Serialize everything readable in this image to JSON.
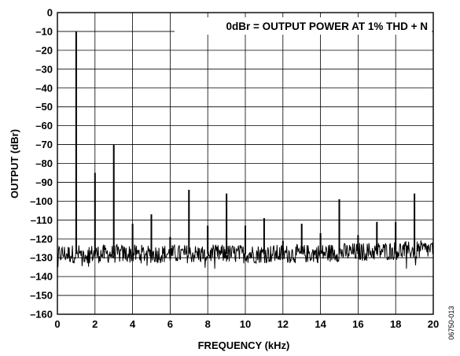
{
  "chart_data": {
    "type": "line",
    "title": "",
    "xlabel": "FREQUENCY (kHz)",
    "ylabel": "OUTPUT (dBr)",
    "xlim": [
      0,
      20
    ],
    "ylim": [
      -160,
      0
    ],
    "x_ticks": [
      0,
      2,
      4,
      6,
      8,
      10,
      12,
      14,
      16,
      18,
      20
    ],
    "y_ticks": [
      0,
      -10,
      -20,
      -30,
      -40,
      -50,
      -60,
      -70,
      -80,
      -90,
      -100,
      -110,
      -120,
      -130,
      -140,
      -150,
      -160
    ],
    "x_tick_labels": [
      "0",
      "2",
      "4",
      "6",
      "8",
      "10",
      "12",
      "14",
      "16",
      "18",
      "20"
    ],
    "y_tick_labels": [
      "0",
      "–10",
      "–20",
      "–30",
      "–40",
      "–50",
      "–60",
      "–70",
      "–80",
      "–90",
      "–100",
      "–110",
      "–120",
      "–130",
      "–140",
      "–150",
      "–160"
    ],
    "grid": true,
    "annotation": "0dBr = OUTPUT POWER AT 1% THD + N",
    "noise_floor": {
      "level": -128,
      "range": [
        -133,
        -123
      ]
    },
    "peaks": [
      {
        "x": 1,
        "y": -10
      },
      {
        "x": 2,
        "y": -85
      },
      {
        "x": 3,
        "y": -70
      },
      {
        "x": 4,
        "y": -112
      },
      {
        "x": 5,
        "y": -107
      },
      {
        "x": 6,
        "y": -119
      },
      {
        "x": 7,
        "y": -94
      },
      {
        "x": 8,
        "y": -113
      },
      {
        "x": 9,
        "y": -96
      },
      {
        "x": 10,
        "y": -113
      },
      {
        "x": 11,
        "y": -109
      },
      {
        "x": 12,
        "y": -121
      },
      {
        "x": 13,
        "y": -112
      },
      {
        "x": 14,
        "y": -117
      },
      {
        "x": 15,
        "y": -99
      },
      {
        "x": 16,
        "y": -118
      },
      {
        "x": 17,
        "y": -111
      },
      {
        "x": 18,
        "y": -111
      },
      {
        "x": 19,
        "y": -96
      }
    ]
  },
  "figure_id": "06750-013"
}
